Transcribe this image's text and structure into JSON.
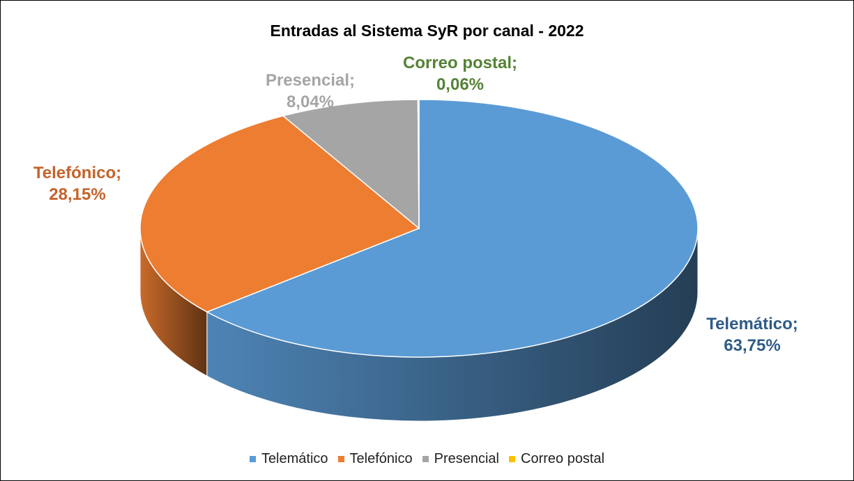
{
  "chart_data": {
    "type": "pie",
    "title": "Entradas al Sistema SyR por canal - 2022",
    "categories": [
      "Telemático",
      "Telefónico",
      "Presencial",
      "Correo postal"
    ],
    "values": [
      63.75,
      28.15,
      8.04,
      0.06
    ],
    "value_labels": [
      "Telemático;\n63,75%",
      "Telefónico;\n28,15%",
      "Presencial;\n8,04%",
      "Correo postal;\n0,06%"
    ],
    "colors": [
      "#5b9bd5",
      "#ed7d31",
      "#a5a5a5",
      "#ffc000"
    ],
    "label_colors": [
      "#2f5b86",
      "#c5622a",
      "#a5a5a5",
      "#548235"
    ],
    "legend": "bottom"
  }
}
